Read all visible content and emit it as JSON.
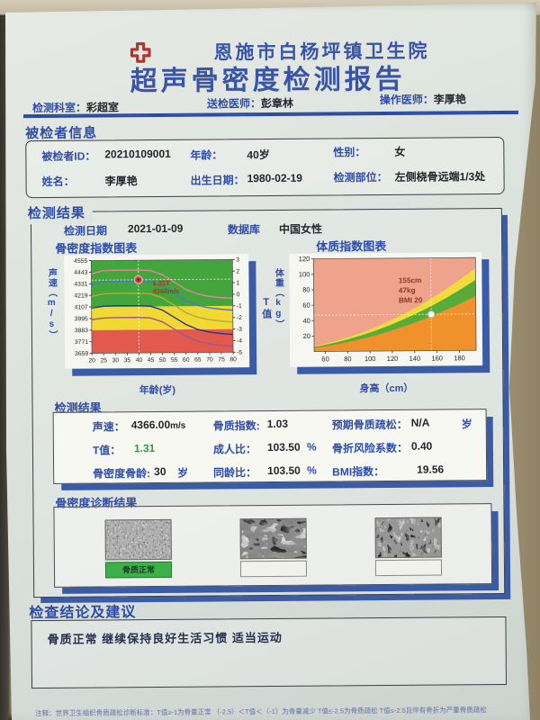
{
  "report": {
    "hospital": "恩施市白杨坪镇卫生院",
    "title": "超声骨密度检测报告",
    "accent_blue": "#2f4da8",
    "meta": {
      "dept_label": "检测科室：",
      "dept": "彩超室",
      "referrer_label": "送检医师：",
      "referrer": "彭章林",
      "operator_label": "操作医师：",
      "operator": "李厚艳"
    }
  },
  "patient": {
    "section_title": "被检者信息",
    "id_label": "被检者ID：",
    "id": "20210109001",
    "age_label": "年龄：",
    "age": "40岁",
    "sex_label": "性别：",
    "sex": "女",
    "name_label": "姓名：",
    "name": "李厚艳",
    "birth_label": "出生日期：",
    "birth": "1980-02-19",
    "site_label": "检测部位：",
    "site": "左侧桡骨远端1/3处"
  },
  "results": {
    "section_title": "检测结果",
    "date_label": "检测日期",
    "date": "2021-01-09",
    "db_label": "数据库",
    "db": "中国女性",
    "bone_chart_title": "骨密度指数图表",
    "bmi_chart_title": "体质指数图表",
    "sub_title": "检测结果",
    "items": {
      "sos_label": "声速：",
      "sos": "4366.00",
      "sos_unit": "m/s",
      "t_label": "T值：",
      "t": "1.31",
      "bone_age_label": "骨密度骨龄:",
      "bone_age": "30",
      "bone_age_unit": "岁",
      "bqi_label": "骨质指数:",
      "bqi": "1.03",
      "adult_label": "成人比：",
      "adult": "103.50",
      "adult_unit": "%",
      "peer_label": "同龄比：",
      "peer": "103.50",
      "peer_unit": "%",
      "osteo_label": "预期骨质疏松：",
      "osteo": "N/A",
      "osteo_unit": "岁",
      "fracture_label": "骨折风险系数：",
      "fracture": "0.40",
      "bmi_label": "BMI指数：",
      "bmi": "19.56"
    }
  },
  "diagnosis": {
    "sub_title": "骨密度诊断结果",
    "labels": [
      "骨质正常",
      "",
      ""
    ]
  },
  "conclusion": {
    "section_title": "检查结论及建议",
    "text": "骨质正常 继续保持良好生活习惯 适当运动"
  },
  "footnote": "注释：世界卫生组织骨质疏松诊断标准：T值≥-1为骨量正常 （-2.5）＜T值＜（-1）为骨量减少 T值≤-2.5为骨质疏松 T值≤-2.5且伴有骨折为严重骨质疏松",
  "chart_data": [
    {
      "type": "line",
      "title": "骨密度指数图表",
      "xlabel": "年龄(岁)",
      "ylabel_left": "声速（m/s）",
      "ylabel_right": "T值",
      "xlim": [
        20,
        80
      ],
      "xticks": [
        20,
        25,
        30,
        35,
        40,
        45,
        50,
        55,
        60,
        65,
        70,
        75,
        80
      ],
      "ylim": [
        3659,
        4555
      ],
      "yticks_left": [
        4555,
        4443,
        4331,
        4219,
        4107,
        3995,
        3883,
        3771,
        3659
      ],
      "yticks_right": [
        3,
        2,
        1,
        0,
        -1,
        -2,
        -3,
        -4,
        -5
      ],
      "grid": false,
      "legend": false,
      "zones": [
        {
          "label": "osteoporosis-red",
          "color": "#e25a4e",
          "y0": 3659,
          "y1": 3883
        },
        {
          "label": "osteopenia-yellow",
          "color": "#f2d834",
          "y0": 3883,
          "y1": 4107
        },
        {
          "label": "normal-green",
          "color": "#43a63d",
          "y0": 4107,
          "y1": 4555
        }
      ],
      "x": [
        20,
        25,
        30,
        35,
        40,
        45,
        50,
        55,
        60,
        65,
        70,
        75,
        80
      ],
      "series": [
        {
          "name": "T+2",
          "color": "#e2849a",
          "values": [
            4425,
            4456,
            4460,
            4460,
            4460,
            4455,
            4415,
            4345,
            4270,
            4225,
            4200,
            4188,
            4180
          ]
        },
        {
          "name": "T+1",
          "color": "#4a79c4",
          "values": [
            4320,
            4348,
            4352,
            4352,
            4352,
            4346,
            4305,
            4235,
            4160,
            4115,
            4090,
            4075,
            4065
          ]
        },
        {
          "name": "T0",
          "color": "#b4ac38",
          "values": [
            4208,
            4232,
            4236,
            4236,
            4236,
            4230,
            4190,
            4120,
            4045,
            4000,
            3975,
            3960,
            3950
          ]
        },
        {
          "name": "T-1",
          "color": "#27397f",
          "values": [
            4096,
            4112,
            4116,
            4116,
            4116,
            4110,
            4072,
            4002,
            3930,
            3882,
            3856,
            3840,
            3830
          ]
        },
        {
          "name": "T-2",
          "color": "#a2548c",
          "values": [
            3984,
            3998,
            4002,
            4002,
            4002,
            3996,
            3958,
            3888,
            3815,
            3768,
            3742,
            3726,
            3716
          ]
        }
      ],
      "marker": {
        "x": 40,
        "y": 4366,
        "color": "#c9403a"
      },
      "annotation": {
        "lines": [
          "1.31T",
          "4366m/s"
        ],
        "color": "#9a3a22",
        "x": 46,
        "y": 4310
      }
    },
    {
      "type": "area",
      "title": "体质指数图表",
      "xlabel": "身高（cm）",
      "ylabel": "体重（kg）",
      "xlim": [
        50,
        195
      ],
      "xticks": [
        60,
        80,
        100,
        120,
        140,
        160,
        180
      ],
      "ylim": [
        0,
        120
      ],
      "yticks": [
        20,
        40,
        60,
        80,
        100,
        120
      ],
      "grid": false,
      "legend": false,
      "bmi_bands": [
        {
          "label": "obese",
          "color": "#efa28c",
          "bmi_above": 28
        },
        {
          "label": "overweight",
          "color": "#f2dc3c",
          "bmi_from": 24,
          "bmi_to": 28
        },
        {
          "label": "normal",
          "color": "#57ab3b",
          "bmi_from": 18.5,
          "bmi_to": 24
        },
        {
          "label": "underweight",
          "color": "#f0912b",
          "bmi_below": 18.5
        }
      ],
      "marker": {
        "x": 155,
        "y": 47,
        "color": "#ffffff"
      },
      "annotation": {
        "lines": [
          "155cm",
          "47kg",
          "BMI 20"
        ],
        "color": "#8a3a20",
        "x": 126,
        "y": 88
      }
    }
  ]
}
